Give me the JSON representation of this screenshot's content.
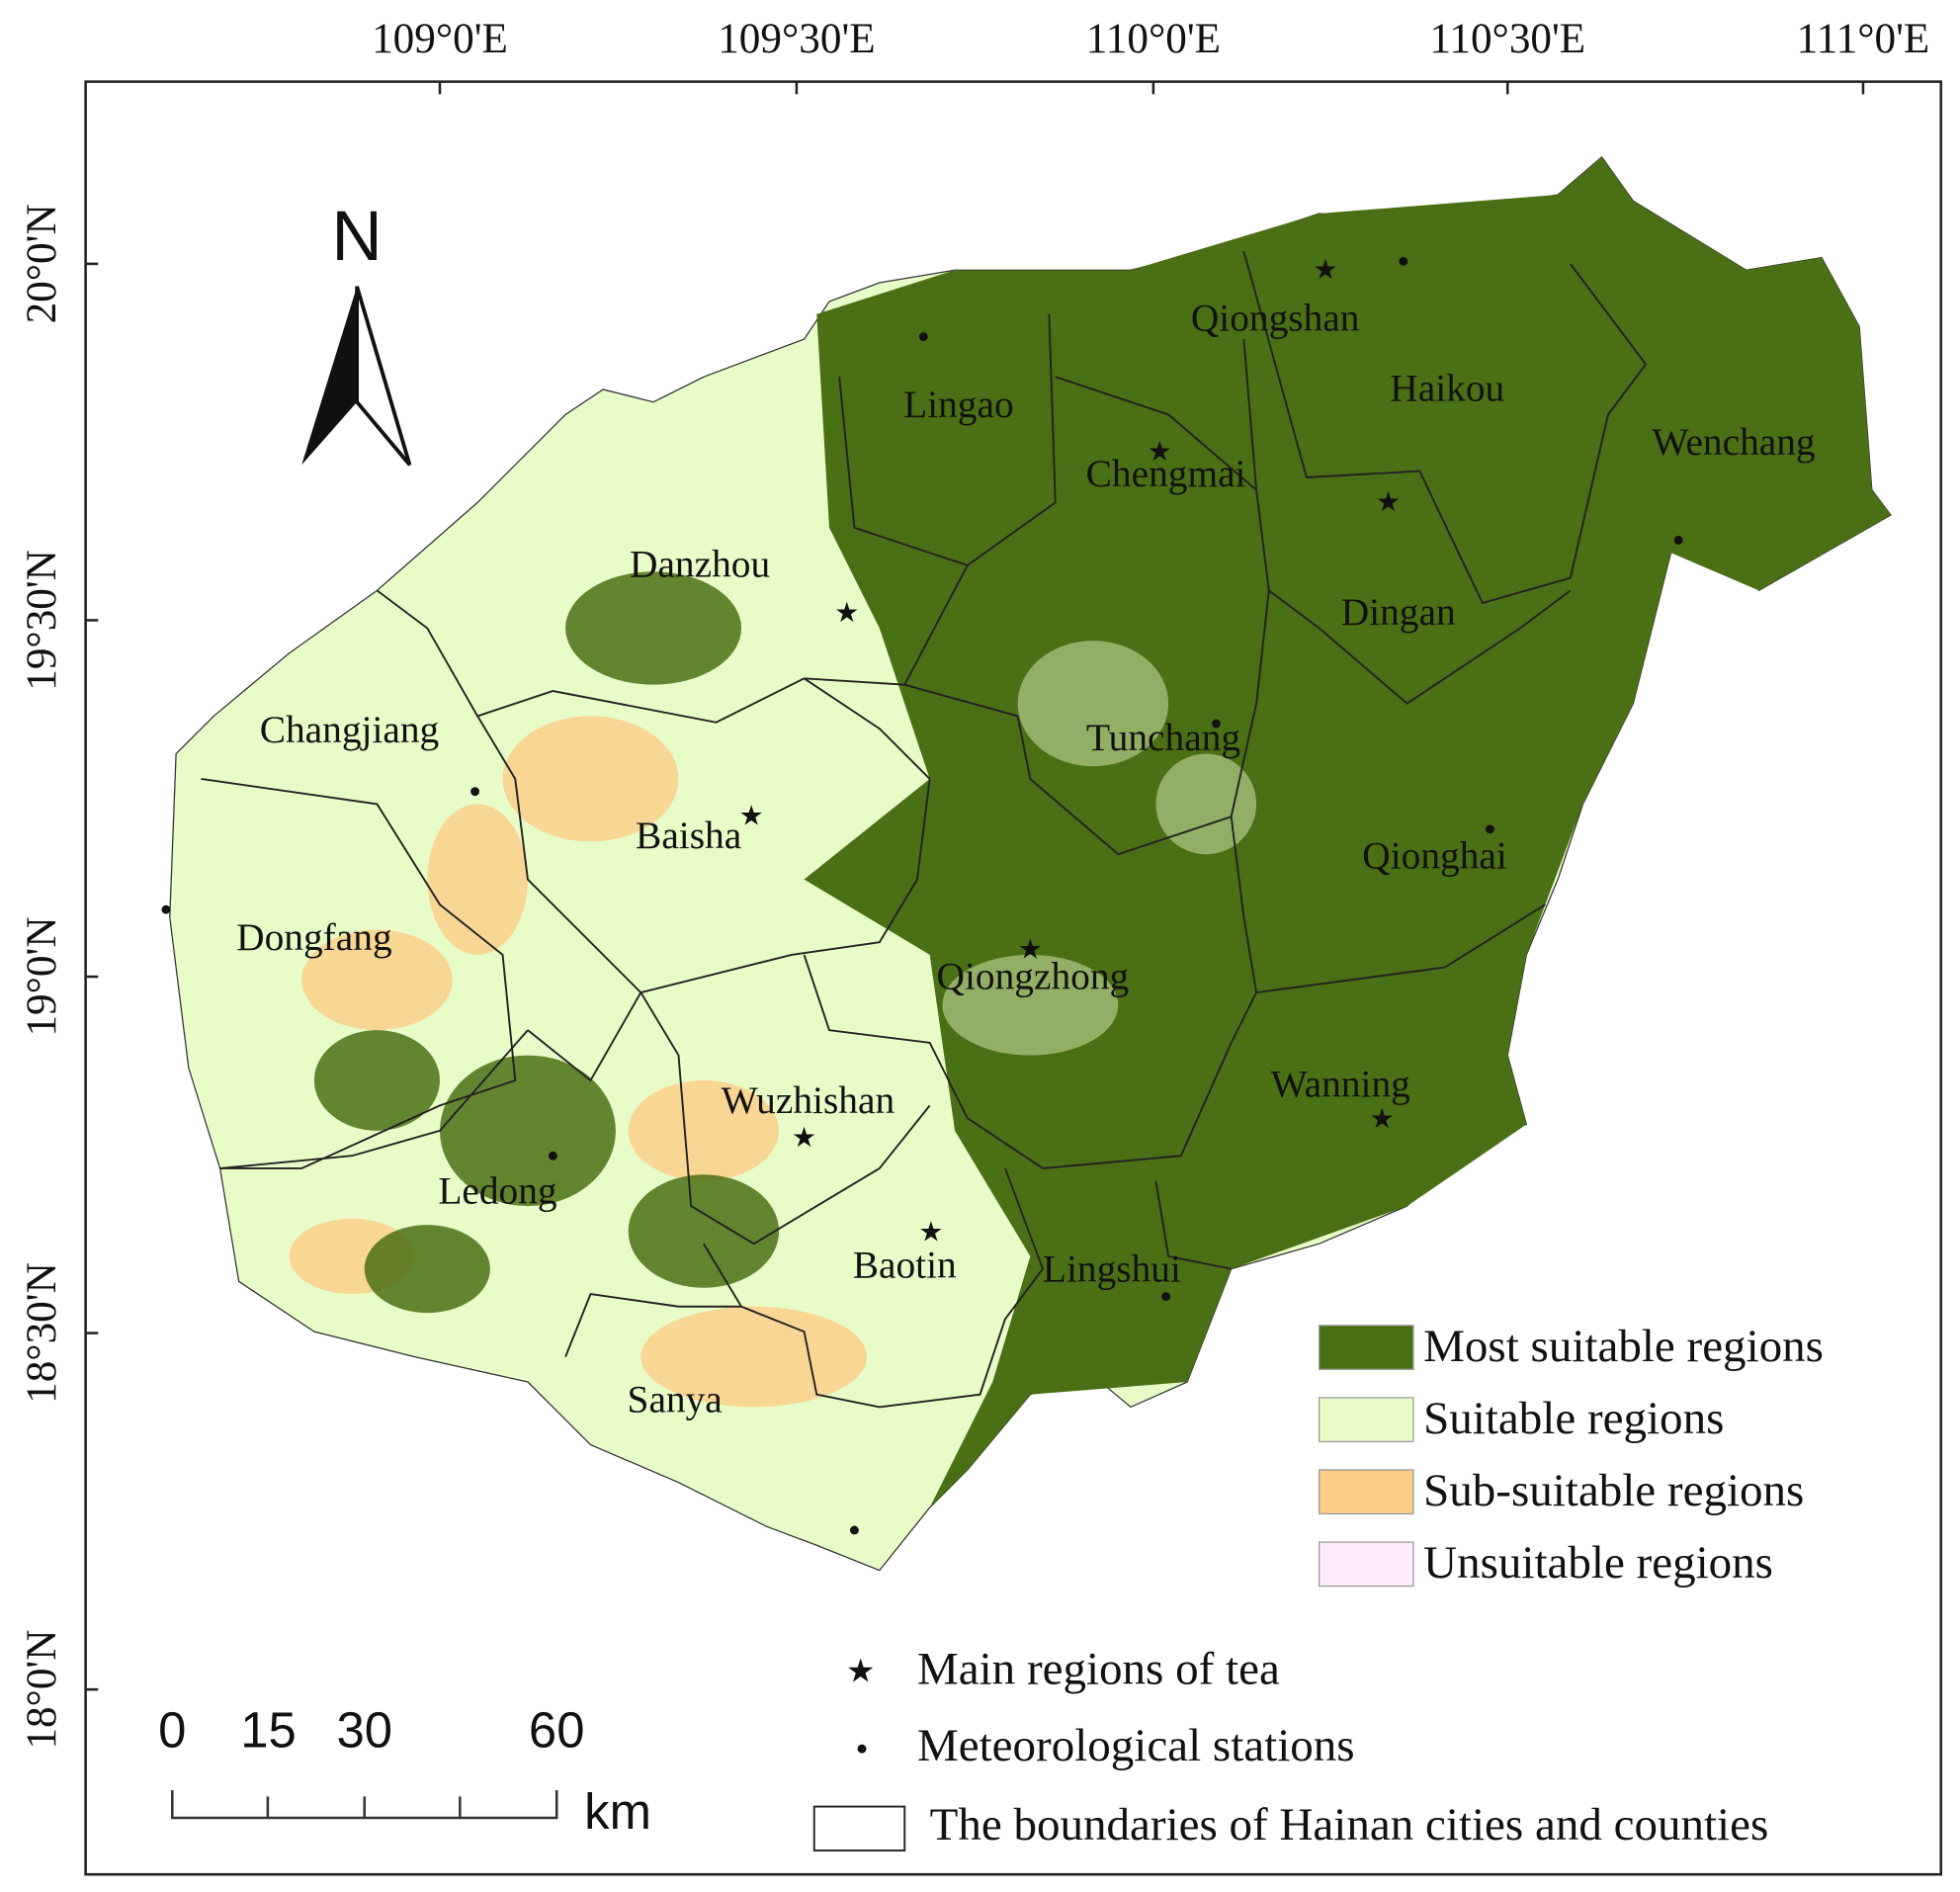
{
  "map": {
    "lon_labels": [
      "109°0'E",
      "109°30'E",
      "110°0'E",
      "110°30'E",
      "111°0'E"
    ],
    "lat_labels": [
      "20°0'N",
      "19°30'N",
      "19°0'N",
      "18°30'N",
      "18°0'N"
    ],
    "north": "N",
    "regions": [
      "Qiongshan",
      "Haikou",
      "Lingao",
      "Chengmai",
      "Wenchang",
      "Danzhou",
      "Dingan",
      "Changjiang",
      "Tunchang",
      "Baisha",
      "Qionghai",
      "Dongfang",
      "Qiongzhong",
      "Wanning",
      "Wuzhishan",
      "Ledong",
      "Baotin",
      "Lingshui",
      "Sanya"
    ]
  },
  "legend": {
    "items": [
      {
        "label": "Most suitable regions",
        "color": "#4a7015"
      },
      {
        "label": "Suitable regions",
        "color": "#e8fcc8"
      },
      {
        "label": "Sub-suitable regions",
        "color": "#fbcd88"
      },
      {
        "label": "Unsuitable regions",
        "color": "#fcecfa"
      }
    ],
    "symbols": [
      "Main regions of tea",
      "Meteorological stations",
      "The boundaries of Hainan cities and counties"
    ]
  },
  "scale_bar": {
    "labels": [
      0,
      15,
      30,
      60
    ],
    "unit": "km"
  }
}
